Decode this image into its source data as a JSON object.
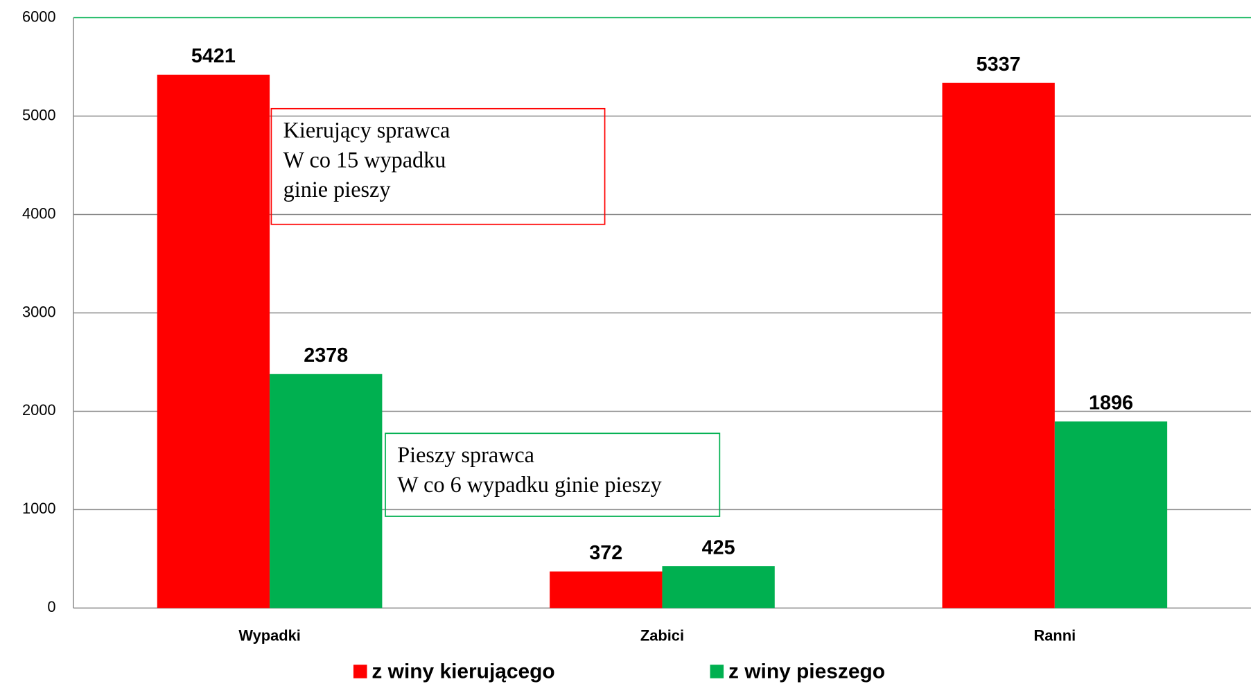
{
  "chart_data": {
    "type": "bar",
    "categories": [
      "Wypadki",
      "Zabici",
      "Ranni"
    ],
    "series": [
      {
        "name": "z winy kierującego",
        "color": "#ff0000",
        "values": [
          5421,
          372,
          5337
        ]
      },
      {
        "name": "z winy pieszego",
        "color": "#00b050",
        "values": [
          2378,
          425,
          1896
        ]
      }
    ],
    "ylim": [
      0,
      6000
    ],
    "yticks": [
      0,
      1000,
      2000,
      3000,
      4000,
      5000,
      6000
    ],
    "grid": true,
    "legend": "bottom",
    "annotations": [
      {
        "lines": [
          "Kierujący sprawca",
          "W co 15 wypadku",
          "ginie pieszy"
        ],
        "color": "#ff0000"
      },
      {
        "lines": [
          "Pieszy sprawca",
          "W co 6 wypadku ginie pieszy"
        ],
        "color": "#00b050"
      }
    ]
  }
}
